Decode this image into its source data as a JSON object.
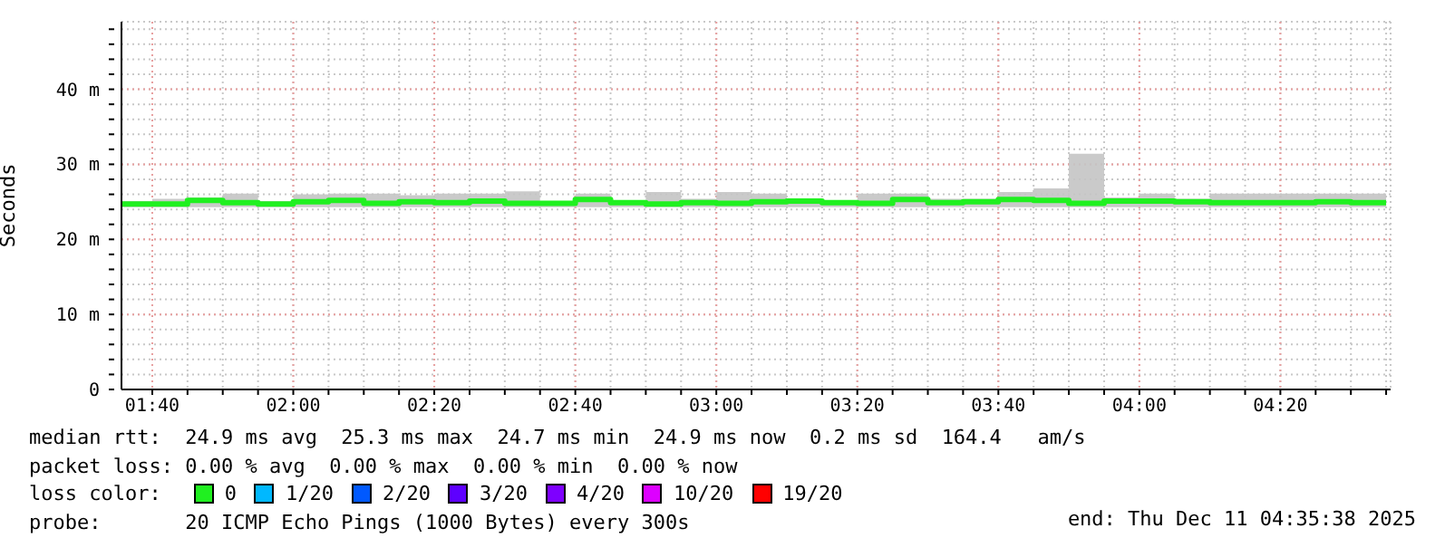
{
  "chart_data": {
    "type": "step",
    "ylabel": "Seconds",
    "legend_title": "loss color:",
    "legend": "bottom",
    "grid": true,
    "line_style": "solid",
    "marker": "none",
    "xlim": [
      1.5939,
      4.5939
    ],
    "xticks": [
      {
        "value": 1.6667,
        "label": "01:40"
      },
      {
        "value": 1.75,
        "label": null
      },
      {
        "value": 1.8333,
        "label": null
      },
      {
        "value": 1.9167,
        "label": null
      },
      {
        "value": 2,
        "label": "02:00"
      },
      {
        "value": 2.0833,
        "label": null
      },
      {
        "value": 2.1667,
        "label": null
      },
      {
        "value": 2.25,
        "label": null
      },
      {
        "value": 2.3333,
        "label": "02:20"
      },
      {
        "value": 2.4167,
        "label": null
      },
      {
        "value": 2.5,
        "label": null
      },
      {
        "value": 2.5833,
        "label": null
      },
      {
        "value": 2.6667,
        "label": "02:40"
      },
      {
        "value": 2.75,
        "label": null
      },
      {
        "value": 2.8333,
        "label": null
      },
      {
        "value": 2.9167,
        "label": null
      },
      {
        "value": 3,
        "label": "03:00"
      },
      {
        "value": 3.0833,
        "label": null
      },
      {
        "value": 3.1667,
        "label": null
      },
      {
        "value": 3.25,
        "label": null
      },
      {
        "value": 3.3333,
        "label": "03:20"
      },
      {
        "value": 3.4167,
        "label": null
      },
      {
        "value": 3.5,
        "label": null
      },
      {
        "value": 3.5833,
        "label": null
      },
      {
        "value": 3.6667,
        "label": "03:40"
      },
      {
        "value": 3.75,
        "label": null
      },
      {
        "value": 3.8333,
        "label": null
      },
      {
        "value": 3.9167,
        "label": null
      },
      {
        "value": 4,
        "label": "04:00"
      },
      {
        "value": 4.0833,
        "label": null
      },
      {
        "value": 4.1667,
        "label": null
      },
      {
        "value": 4.25,
        "label": null
      },
      {
        "value": 4.3333,
        "label": "04:20"
      },
      {
        "value": 4.4167,
        "label": null
      },
      {
        "value": 4.5,
        "label": null
      },
      {
        "value": 4.5833,
        "label": null
      }
    ],
    "ylim": [
      0,
      49
    ],
    "yticks": [
      0,
      {
        "value": 2,
        "label": null
      },
      {
        "value": 4,
        "label": null
      },
      {
        "value": 6,
        "label": null
      },
      {
        "value": 8,
        "label": null
      },
      {
        "value": 10,
        "label": "10 m"
      },
      {
        "value": 12,
        "label": null
      },
      {
        "value": 14,
        "label": null
      },
      {
        "value": 16,
        "label": null
      },
      {
        "value": 18,
        "label": null
      },
      {
        "value": 20,
        "label": "20 m"
      },
      {
        "value": 22,
        "label": null
      },
      {
        "value": 24,
        "label": null
      },
      {
        "value": 26,
        "label": null
      },
      {
        "value": 28,
        "label": null
      },
      {
        "value": 30,
        "label": "30 m"
      },
      {
        "value": 32,
        "label": null
      },
      {
        "value": 34,
        "label": null
      },
      {
        "value": 36,
        "label": null
      },
      {
        "value": 38,
        "label": null
      },
      {
        "value": 40,
        "label": "40 m"
      },
      {
        "value": 42,
        "label": null
      },
      {
        "value": 44,
        "label": null
      },
      {
        "value": 46,
        "label": null
      },
      {
        "value": 48,
        "label": null
      }
    ],
    "x": [
      1.5939,
      1.6667,
      1.75,
      1.8333,
      1.9167,
      2,
      2.0833,
      2.1667,
      2.25,
      2.3333,
      2.4167,
      2.5,
      2.5833,
      2.6667,
      2.75,
      2.8333,
      2.9167,
      3,
      3.0833,
      3.1667,
      3.25,
      3.3333,
      3.4167,
      3.5,
      3.5833,
      3.6667,
      3.75,
      3.8333,
      3.9167,
      4,
      4.0833,
      4.1667,
      4.25,
      4.3333,
      4.4167,
      4.5,
      4.5833
    ],
    "series": [
      {
        "name": "0",
        "color": "#20f020",
        "values": [
          24.7,
          24.7,
          25.2,
          24.9,
          24.7,
          25.0,
          25.2,
          24.8,
          25.0,
          24.9,
          25.1,
          24.8,
          24.8,
          25.3,
          24.9,
          24.7,
          24.9,
          24.8,
          25.0,
          25.1,
          24.9,
          24.8,
          25.3,
          24.9,
          25.0,
          25.3,
          25.2,
          24.8,
          25.1,
          25.1,
          25.0,
          24.9,
          24.9,
          24.9,
          25.0,
          24.9,
          24.9
        ],
        "lower": [
          24.3,
          24.3,
          24.3,
          24.3,
          24.3,
          24.3,
          24.3,
          24.3,
          24.3,
          24.3,
          24.3,
          24.3,
          24.3,
          24.3,
          24.3,
          24.3,
          24.3,
          24.3,
          24.3,
          24.3,
          24.3,
          24.3,
          24.3,
          24.3,
          24.3,
          24.3,
          24.3,
          24.3,
          24.3,
          24.3,
          24.3,
          24.3,
          24.3,
          24.3,
          24.3,
          24.3,
          24.3
        ],
        "upper": [
          25.1,
          25.4,
          25.6,
          26.1,
          25.1,
          26.0,
          26.1,
          26.1,
          25.9,
          26.1,
          26.1,
          26.4,
          25.1,
          26.1,
          25.1,
          26.3,
          25.4,
          26.3,
          26.1,
          25.3,
          25.2,
          26.1,
          26.1,
          25.4,
          25.4,
          26.3,
          26.8,
          31.4,
          25.6,
          26.1,
          25.4,
          26.1,
          26.1,
          26.1,
          26.1,
          26.1,
          26.1
        ]
      },
      {
        "name": "1/20",
        "color": "#00b8ff",
        "values": [
          null,
          null,
          null,
          null,
          null,
          null,
          null,
          null,
          null,
          null,
          null,
          null,
          null,
          null,
          null,
          null,
          null,
          null,
          null,
          null,
          null,
          null,
          null,
          null,
          null,
          null,
          null,
          null,
          null,
          null,
          null,
          null,
          null,
          null,
          null,
          null,
          null
        ]
      },
      {
        "name": "2/20",
        "color": "#0059ff",
        "values": [
          null,
          null,
          null,
          null,
          null,
          null,
          null,
          null,
          null,
          null,
          null,
          null,
          null,
          null,
          null,
          null,
          null,
          null,
          null,
          null,
          null,
          null,
          null,
          null,
          null,
          null,
          null,
          null,
          null,
          null,
          null,
          null,
          null,
          null,
          null,
          null,
          null
        ]
      },
      {
        "name": "3/20",
        "color": "#5e00ff",
        "values": [
          null,
          null,
          null,
          null,
          null,
          null,
          null,
          null,
          null,
          null,
          null,
          null,
          null,
          null,
          null,
          null,
          null,
          null,
          null,
          null,
          null,
          null,
          null,
          null,
          null,
          null,
          null,
          null,
          null,
          null,
          null,
          null,
          null,
          null,
          null,
          null,
          null
        ]
      },
      {
        "name": "4/20",
        "color": "#7e00ff",
        "values": [
          null,
          null,
          null,
          null,
          null,
          null,
          null,
          null,
          null,
          null,
          null,
          null,
          null,
          null,
          null,
          null,
          null,
          null,
          null,
          null,
          null,
          null,
          null,
          null,
          null,
          null,
          null,
          null,
          null,
          null,
          null,
          null,
          null,
          null,
          null,
          null,
          null
        ]
      },
      {
        "name": "10/20",
        "color": "#dd00ff",
        "values": [
          null,
          null,
          null,
          null,
          null,
          null,
          null,
          null,
          null,
          null,
          null,
          null,
          null,
          null,
          null,
          null,
          null,
          null,
          null,
          null,
          null,
          null,
          null,
          null,
          null,
          null,
          null,
          null,
          null,
          null,
          null,
          null,
          null,
          null,
          null,
          null,
          null
        ]
      },
      {
        "name": "19/20",
        "color": "#ff0000",
        "values": [
          null,
          null,
          null,
          null,
          null,
          null,
          null,
          null,
          null,
          null,
          null,
          null,
          null,
          null,
          null,
          null,
          null,
          null,
          null,
          null,
          null,
          null,
          null,
          null,
          null,
          null,
          null,
          null,
          null,
          null,
          null,
          null,
          null,
          null,
          null,
          null,
          null
        ]
      }
    ],
    "annotations": [
      "median rtt:  24.9 ms avg  25.3 ms max  24.7 ms min  24.9 ms now  0.2 ms sd  164.4   am/s",
      "packet loss: 0.00 % avg  0.00 % max  0.00 % min  0.00 % now",
      "probe:       20 ICMP Echo Pings (1000 Bytes) every 300s",
      "end: Thu Dec 11 04:35:38 2025"
    ]
  }
}
